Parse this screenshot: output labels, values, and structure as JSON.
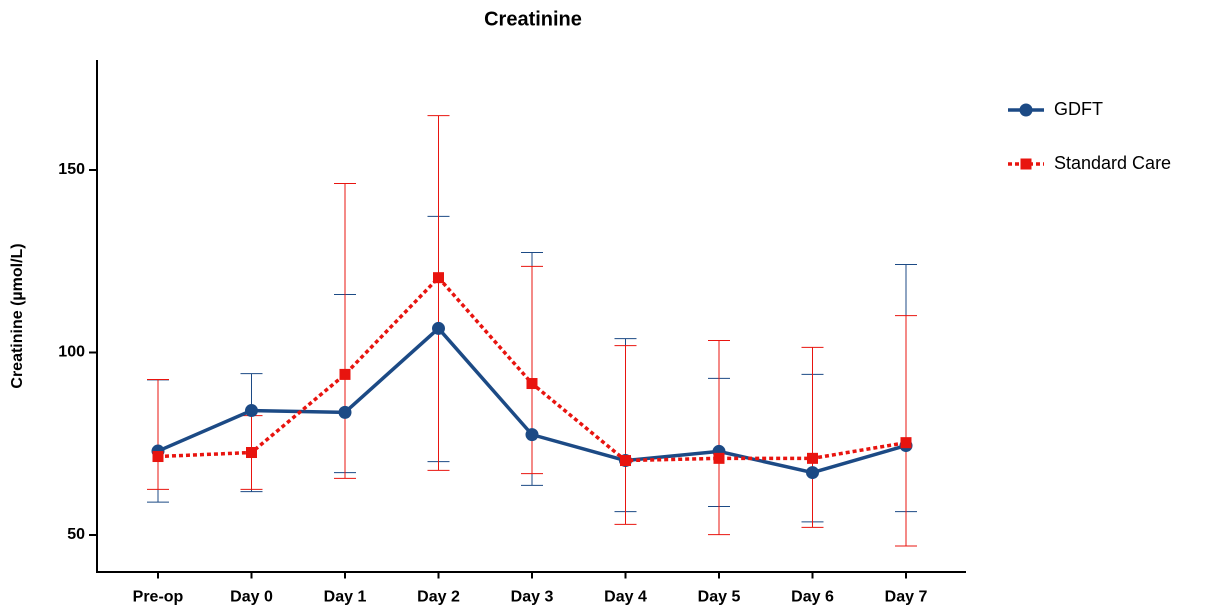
{
  "chart_data": {
    "type": "line",
    "title": "Creatinine",
    "y_label": "Creatinine (µmol/L)",
    "categories": [
      "Pre-op",
      "Day 0",
      "Day 1",
      "Day 2",
      "Day 3",
      "Day 4",
      "Day 5",
      "Day 6",
      "Day 7"
    ],
    "ylim": [
      40,
      180
    ],
    "yticks": [
      50,
      100,
      150
    ],
    "series": [
      {
        "name": "GDFT",
        "color": "#1c4a85",
        "marker": "circle",
        "dash": "solid",
        "values": [
          73,
          84.1,
          83.6,
          106.6,
          77.5,
          70.4,
          72.9,
          67.1,
          74.5
        ],
        "lower": [
          59,
          61.9,
          67.1,
          70.1,
          63.6,
          56.4,
          57.8,
          53.6,
          56.4
        ],
        "upper": [
          92.5,
          94.2,
          115.9,
          137.3,
          127.4,
          103.8,
          92.9,
          94,
          124.1
        ]
      },
      {
        "name": "Standard Care",
        "color": "#e8140f",
        "marker": "square",
        "dash": "dotted",
        "values": [
          71.5,
          72.6,
          94,
          120.5,
          91.5,
          70.4,
          71,
          71,
          75.3
        ],
        "lower": [
          62.5,
          62.5,
          65.5,
          67.7,
          66.8,
          52.9,
          50.1,
          52.1,
          47
        ],
        "upper": [
          92.6,
          82.7,
          146.3,
          164.9,
          123.6,
          101.9,
          103.3,
          101.4,
          110.1
        ]
      }
    ]
  }
}
